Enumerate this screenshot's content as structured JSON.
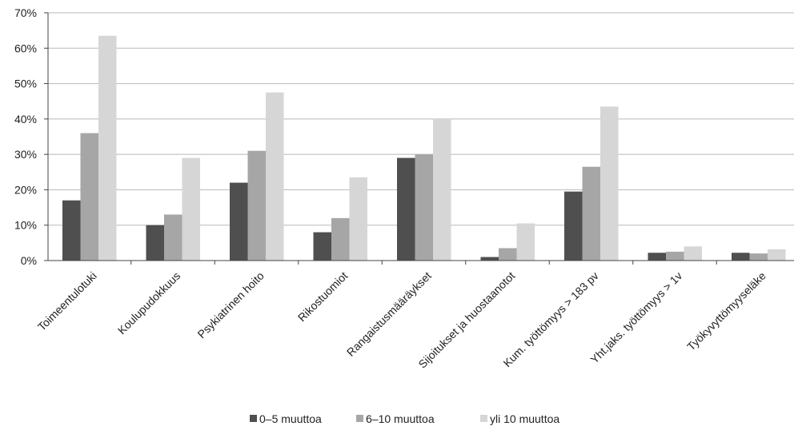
{
  "chart_data": {
    "type": "bar",
    "title": "",
    "xlabel": "",
    "ylabel": "",
    "ylim": [
      0,
      70
    ],
    "y_ticks": [
      "0%",
      "10%",
      "20%",
      "30%",
      "40%",
      "50%",
      "60%",
      "70%"
    ],
    "grid": true,
    "legend_position": "bottom",
    "categories": [
      "Toimeentulotuki",
      "Koulupudokkuus",
      "Psykiatrinen hoito",
      "Rikostuomiot",
      "Rangaistusmääräykset",
      "Sijoitukset ja huostaanotot",
      "Kum. työttömyys > 183 pv",
      "Yht.jaks. työttömyys > 1v",
      "Työkyvyttömyyseläke"
    ],
    "series": [
      {
        "name": "0–5 muuttoa",
        "color": "#4f4f4f",
        "values": [
          17,
          10,
          22,
          8,
          29,
          1,
          19.5,
          2.2,
          2.2
        ]
      },
      {
        "name": "6–10 muuttoa",
        "color": "#a6a6a6",
        "values": [
          36,
          13,
          31,
          12,
          30,
          3.5,
          26.5,
          2.5,
          2
        ]
      },
      {
        "name": "yli 10 muuttoa",
        "color": "#d6d6d6",
        "values": [
          63.5,
          29,
          47.5,
          23.5,
          40,
          10.5,
          43.5,
          4,
          3.2
        ]
      }
    ]
  }
}
